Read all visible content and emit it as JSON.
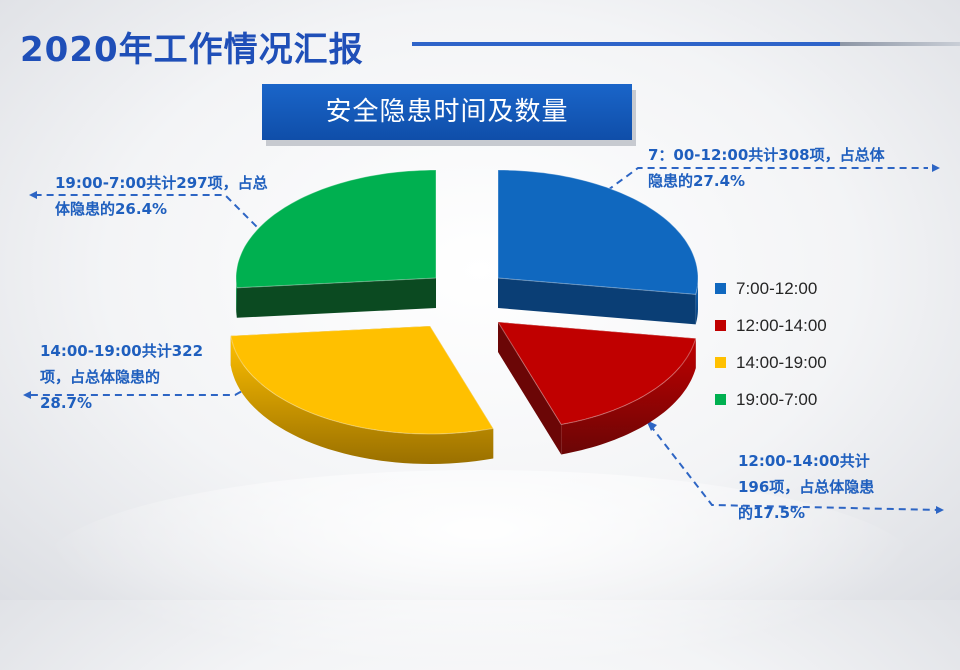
{
  "header": {
    "title": "2020年工作情况汇报",
    "subtitle": "安全隐患时间及数量"
  },
  "colors": {
    "title": "#1f4fb8",
    "accent": "#2e64c9",
    "note_text": "#1f5fbe"
  },
  "chart_data": {
    "type": "pie",
    "style": "3d-exploded",
    "legend_position": "right",
    "slices": [
      {
        "label": "7:00-12:00",
        "value": 308,
        "percent": 27.4,
        "color": "#1068bf",
        "dark": "#0a3e75",
        "annotation": "7：00-12:00共计308项，占总体隐患的27.4%"
      },
      {
        "label": "12:00-14:00",
        "value": 196,
        "percent": 17.5,
        "color": "#c00000",
        "dark": "#6b0606",
        "annotation": "12:00-14:00共计196项，占总体隐患的17.5%"
      },
      {
        "label": "14:00-19:00",
        "value": 322,
        "percent": 28.7,
        "color": "#ffc000",
        "dark": "#9a7000",
        "annotation": "14:00-19:00共计322项，占总体隐患的28.7%"
      },
      {
        "label": "19:00-7:00",
        "value": 297,
        "percent": 26.4,
        "color": "#00b050",
        "dark": "#0b4a21",
        "annotation": "19:00-7:00共计297项，占总体隐患的26.4%"
      }
    ]
  },
  "annotations": {
    "slice0_lines": [
      "7：00-12:00共计308项，占总体",
      "隐患的27.4%"
    ],
    "slice1_lines": [
      "12:00-14:00共计",
      "196项，占总体隐患",
      "的17.5%"
    ],
    "slice2_lines": [
      "14:00-19:00共计322",
      "项，占总体隐患的",
      "28.7%"
    ],
    "slice3_lines": [
      "19:00-7:00共计297项，占总",
      "体隐患的26.4%"
    ]
  }
}
